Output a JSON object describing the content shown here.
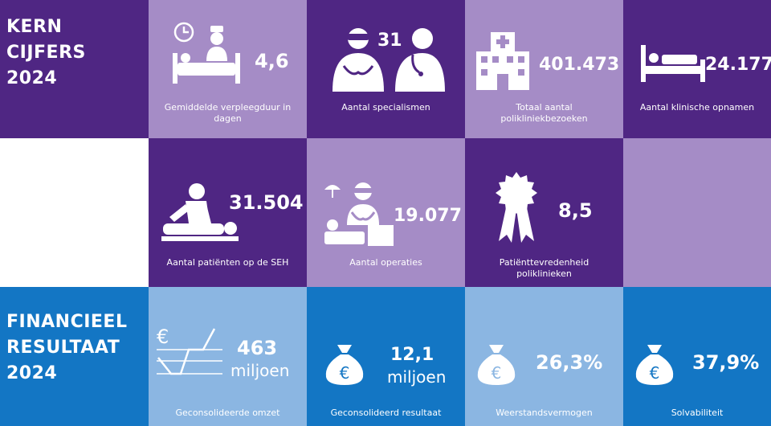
{
  "kern": {
    "title": "KERN\nCIJFERS\n2024",
    "tiles": [
      {
        "value": "4,6",
        "label": "Gemiddelde verpleegduur in dagen",
        "icon": "nurse-bed-clock-icon"
      },
      {
        "value": "31",
        "label": "Aantal specialismen",
        "icon": "doctors-icon"
      },
      {
        "value": "401.473",
        "label": "Totaal aantal polikliniekbezoeken",
        "icon": "hospital-building-icon"
      },
      {
        "value": "24.177",
        "label": "Aantal klinische opnamen",
        "icon": "bed-icon"
      },
      {
        "value": "31.504",
        "label": "Aantal patiënten op de SEH",
        "icon": "emergency-care-icon"
      },
      {
        "value": "19.077",
        "label": "Aantal operaties",
        "icon": "surgeon-icon"
      },
      {
        "value": "8,5",
        "label": "Patiënttevredenheid poliklinieken",
        "icon": "rosette-icon"
      }
    ]
  },
  "financieel": {
    "title": "FINANCIEEL\nRESULTAAT\n2024",
    "tiles": [
      {
        "value": "463",
        "unit": "miljoen",
        "label": "Geconsolideerde omzet",
        "icon": "euro-chart-icon"
      },
      {
        "value": "12,1",
        "unit": "miljoen",
        "label": "Geconsolideerd resultaat",
        "icon": "money-bag-icon"
      },
      {
        "value": "26,3%",
        "label": "Weerstandsvermogen",
        "icon": "money-bag-icon"
      },
      {
        "value": "37,9%",
        "label": "Solvabiliteit",
        "icon": "money-bag-icon"
      }
    ]
  },
  "colors": {
    "dark_purple": "#4f2683",
    "light_purple": "#a58cc6",
    "blue": "#1376c4",
    "light_blue": "#8bb6e2"
  }
}
